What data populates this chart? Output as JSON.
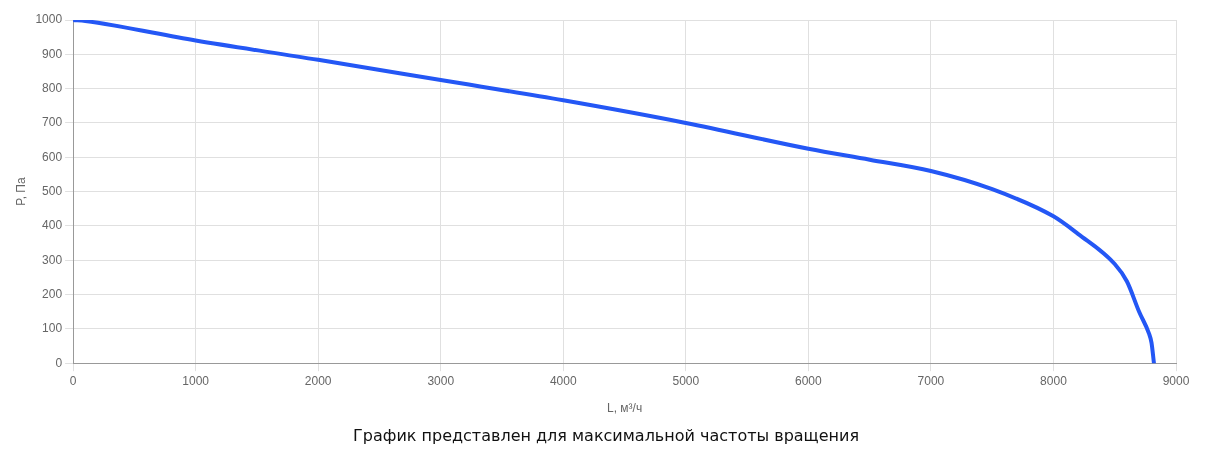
{
  "chart_data": {
    "type": "line",
    "xlabel": "L, м³/ч",
    "ylabel": "P, Па",
    "annotations": [
      "График представлен для максимальной частоты вращения"
    ],
    "x": [
      0,
      100,
      1000,
      2000,
      3000,
      4000,
      5000,
      6000,
      6500,
      7000,
      7500,
      8000,
      8200,
      8500,
      8600,
      8700,
      8780,
      8800,
      8820
    ],
    "series": [
      {
        "color": "#2457f5",
        "values": [
          1000,
          997,
          940,
          884,
          825,
          766,
          700,
          625,
          593,
          560,
          507,
          428,
          377,
          289,
          238,
          149,
          86,
          60,
          0
        ]
      }
    ],
    "xlim": [
      0,
      9000
    ],
    "xticks": [
      0,
      1000,
      2000,
      3000,
      4000,
      5000,
      6000,
      7000,
      8000,
      9000
    ],
    "ylim": [
      0,
      1000
    ],
    "yticks": [
      0,
      100,
      200,
      300,
      400,
      500,
      600,
      700,
      800,
      900,
      1000
    ],
    "grid": true,
    "legend": false,
    "marker": "none",
    "line_style": "solid"
  }
}
